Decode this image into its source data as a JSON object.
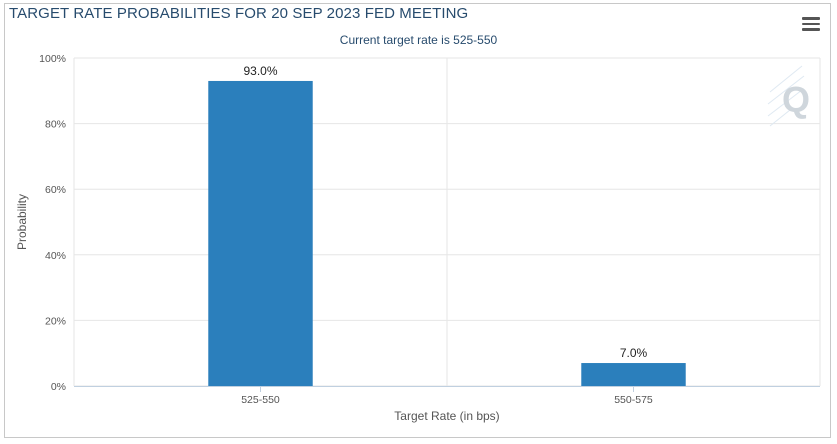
{
  "chart_data": {
    "type": "bar",
    "title": "TARGET RATE PROBABILITIES FOR 20 SEP 2023 FED MEETING",
    "subtitle": "Current target rate is 525-550",
    "categories": [
      "525-550",
      "550-575"
    ],
    "values": [
      93.0,
      7.0
    ],
    "data_labels": [
      "93.0%",
      "7.0%"
    ],
    "xlabel": "Target Rate (in bps)",
    "ylabel": "Probability",
    "ylim": [
      0,
      100
    ],
    "yticks": [
      0,
      20,
      40,
      60,
      80,
      100
    ],
    "ytick_labels": [
      "0%",
      "20%",
      "40%",
      "60%",
      "80%",
      "100%"
    ],
    "grid": true,
    "legend": "none",
    "bar_color": "#2b7fbc"
  },
  "toolbar": {
    "menu_icon": "hamburger-menu-icon"
  },
  "watermark": {
    "icon": "q-logo-icon",
    "letter": "Q"
  }
}
